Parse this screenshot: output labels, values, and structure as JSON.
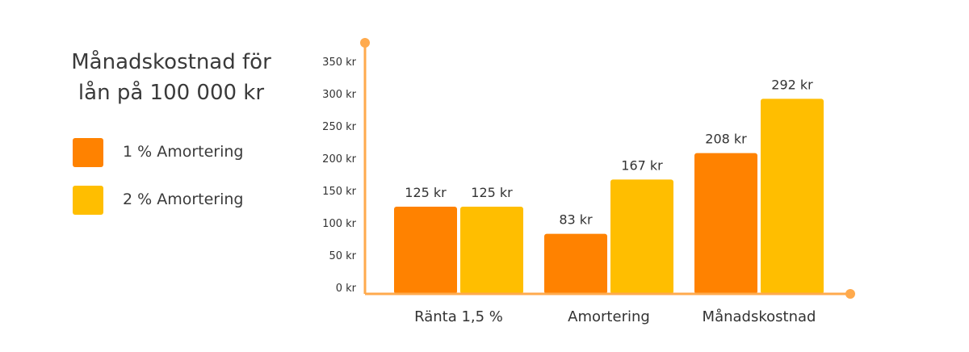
{
  "legend": {
    "title_line1": "Månadskostnad för",
    "title_line2": "lån på 100 000 kr",
    "items": [
      {
        "label": "1 % Amortering",
        "color": "#ff8200"
      },
      {
        "label": "2 % Amortering",
        "color": "#ffbe00"
      }
    ]
  },
  "chart_data": {
    "type": "bar",
    "title": "Månadskostnad för lån på 100 000 kr",
    "categories": [
      "Ränta 1,5 %",
      "Amortering",
      "Månadskostnad"
    ],
    "series": [
      {
        "name": "1 % Amortering",
        "values": [
          125,
          83,
          208
        ],
        "labels": [
          "125 kr",
          "83 kr",
          "208 kr"
        ]
      },
      {
        "name": "2 % Amortering",
        "values": [
          125,
          167,
          292
        ],
        "labels": [
          "125 kr",
          "167 kr",
          "292 kr"
        ]
      }
    ],
    "ylim": [
      0,
      350
    ],
    "yticks": [
      {
        "value": 0,
        "label": "0 kr"
      },
      {
        "value": 50,
        "label": "50 kr"
      },
      {
        "value": 100,
        "label": "100 kr"
      },
      {
        "value": 150,
        "label": "150 kr"
      },
      {
        "value": 200,
        "label": "200 kr"
      },
      {
        "value": 250,
        "label": "250 kr"
      },
      {
        "value": 300,
        "label": "300 kr"
      },
      {
        "value": 350,
        "label": "350 kr"
      }
    ],
    "axis_color": "#ffaa4d",
    "grid": false,
    "legend_position": "left"
  }
}
